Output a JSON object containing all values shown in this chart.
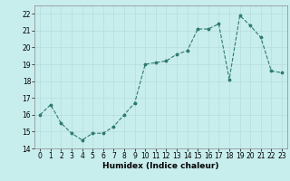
{
  "x": [
    0,
    1,
    2,
    3,
    4,
    5,
    6,
    7,
    8,
    9,
    10,
    11,
    12,
    13,
    14,
    15,
    16,
    17,
    18,
    19,
    20,
    21,
    22,
    23
  ],
  "y": [
    16.0,
    16.6,
    15.5,
    14.9,
    14.5,
    14.9,
    14.9,
    15.3,
    16.0,
    16.7,
    19.0,
    19.1,
    19.2,
    19.6,
    19.8,
    21.1,
    21.1,
    21.4,
    18.1,
    21.9,
    21.3,
    20.6,
    18.6,
    18.5
  ],
  "line_color": "#2e7b6e",
  "marker_color": "#2e7b6e",
  "bg_color": "#c8eded",
  "grid_color": "#b8dcdc",
  "xlabel": "Humidex (Indice chaleur)",
  "ylim": [
    14,
    22.5
  ],
  "xlim": [
    -0.5,
    23.5
  ],
  "yticks": [
    14,
    15,
    16,
    17,
    18,
    19,
    20,
    21,
    22
  ],
  "xticks": [
    0,
    1,
    2,
    3,
    4,
    5,
    6,
    7,
    8,
    9,
    10,
    11,
    12,
    13,
    14,
    15,
    16,
    17,
    18,
    19,
    20,
    21,
    22,
    23
  ],
  "tick_fontsize": 5.5,
  "xlabel_fontsize": 6.5
}
